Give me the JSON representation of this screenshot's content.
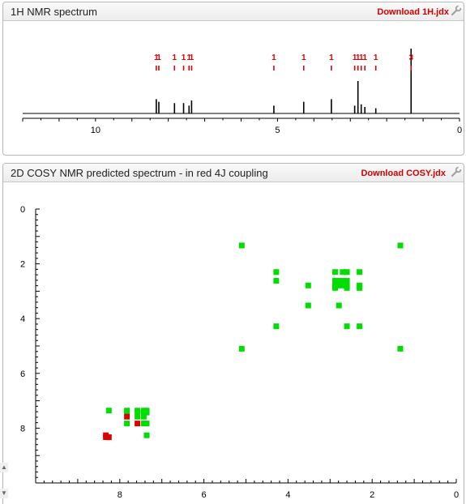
{
  "panel_1h": {
    "title": "1H NMR spectrum",
    "download_label": "Download 1H.jdx",
    "wrench_icon": "wrench-icon"
  },
  "panel_cosy": {
    "title": "2D COSY NMR predicted spectrum - in red 4J coupling",
    "download_label": "Download COSY.jdx",
    "wrench_icon": "wrench-icon"
  },
  "colors": {
    "peak_label": "#e00000",
    "cosy_3j": "#00dd00",
    "cosy_4j": "#dd0000",
    "axis": "#000000"
  },
  "chart_data": [
    {
      "type": "line",
      "title": "1H NMR spectrum",
      "x_reversed": true,
      "xlim": [
        12,
        0
      ],
      "x_ticks": [
        10,
        5,
        0
      ],
      "peaks": [
        {
          "ppm": 8.33,
          "height": 0.22,
          "label": "1"
        },
        {
          "ppm": 8.26,
          "height": 0.18,
          "label": "1"
        },
        {
          "ppm": 7.83,
          "height": 0.16,
          "label": "1"
        },
        {
          "ppm": 7.58,
          "height": 0.16,
          "label": "1"
        },
        {
          "ppm": 7.43,
          "height": 0.12,
          "label": "1"
        },
        {
          "ppm": 7.36,
          "height": 0.2,
          "label": "1"
        },
        {
          "ppm": 5.1,
          "height": 0.12,
          "label": "1"
        },
        {
          "ppm": 4.28,
          "height": 0.18,
          "label": "1"
        },
        {
          "ppm": 3.52,
          "height": 0.22,
          "label": "1"
        },
        {
          "ppm": 2.88,
          "height": 0.12,
          "label": "1"
        },
        {
          "ppm": 2.79,
          "height": 0.5,
          "label": "1"
        },
        {
          "ppm": 2.7,
          "height": 0.14,
          "label": "1"
        },
        {
          "ppm": 2.6,
          "height": 0.1,
          "label": "1"
        },
        {
          "ppm": 2.3,
          "height": 0.08,
          "label": "1"
        },
        {
          "ppm": 1.33,
          "height": 1.0,
          "label": "3"
        }
      ]
    },
    {
      "type": "scatter",
      "title": "2D COSY NMR predicted spectrum - in red 4J coupling",
      "x_reversed": true,
      "xlim": [
        10,
        0
      ],
      "ylim": [
        0,
        10
      ],
      "x_ticks": [
        8,
        6,
        4,
        2,
        0
      ],
      "y_ticks": [
        0,
        2,
        4,
        6,
        8
      ],
      "series": [
        {
          "name": "",
          "color": "#00dd00",
          "points": [
            [
              5.1,
              1.33
            ],
            [
              1.33,
              1.33
            ],
            [
              5.1,
              5.1
            ],
            [
              1.33,
              5.1
            ],
            [
              4.28,
              2.3
            ],
            [
              2.88,
              2.3
            ],
            [
              2.7,
              2.3
            ],
            [
              2.6,
              2.3
            ],
            [
              2.3,
              2.3
            ],
            [
              4.28,
              2.62
            ],
            [
              2.88,
              2.62
            ],
            [
              2.79,
              2.62
            ],
            [
              2.7,
              2.62
            ],
            [
              2.6,
              2.62
            ],
            [
              3.52,
              2.79
            ],
            [
              2.88,
              2.79
            ],
            [
              2.79,
              2.79
            ],
            [
              2.7,
              2.79
            ],
            [
              2.6,
              2.79
            ],
            [
              2.3,
              2.79
            ],
            [
              2.88,
              2.88
            ],
            [
              2.6,
              2.88
            ],
            [
              2.3,
              2.88
            ],
            [
              3.52,
              3.52
            ],
            [
              2.79,
              3.52
            ],
            [
              4.28,
              4.28
            ],
            [
              2.6,
              4.28
            ],
            [
              2.3,
              4.28
            ],
            [
              8.26,
              7.36
            ],
            [
              7.83,
              7.36
            ],
            [
              7.58,
              7.36
            ],
            [
              7.43,
              7.36
            ],
            [
              7.36,
              7.36
            ],
            [
              7.83,
              7.43
            ],
            [
              7.58,
              7.43
            ],
            [
              7.43,
              7.43
            ],
            [
              7.36,
              7.43
            ],
            [
              7.58,
              7.58
            ],
            [
              7.43,
              7.58
            ],
            [
              7.83,
              7.83
            ],
            [
              7.43,
              7.83
            ],
            [
              7.36,
              7.83
            ],
            [
              7.36,
              8.26
            ]
          ]
        },
        {
          "name": "",
          "color": "#dd0000",
          "points": [
            [
              8.33,
              8.26
            ],
            [
              8.26,
              8.33
            ],
            [
              8.33,
              8.33
            ],
            [
              7.83,
              7.58
            ],
            [
              7.58,
              7.83
            ]
          ]
        }
      ]
    }
  ]
}
